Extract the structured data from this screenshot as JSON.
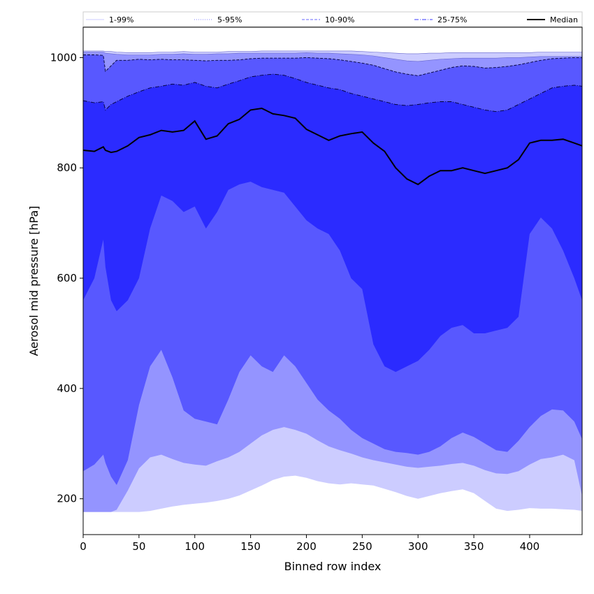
{
  "chart_data": {
    "type": "area",
    "xlabel": "Binned row index",
    "ylabel": "Aerosol mid pressure [hPa]",
    "xlim": [
      0,
      447
    ],
    "ylim": [
      135,
      1055
    ],
    "x_ticks": [
      0,
      50,
      100,
      150,
      200,
      250,
      300,
      350,
      400
    ],
    "y_ticks": [
      200,
      400,
      600,
      800,
      1000
    ],
    "grid": false,
    "legend_position": "top",
    "legend": [
      {
        "name": "1-99%",
        "color": "#ccccff",
        "style": "solid"
      },
      {
        "name": "5-95%",
        "color": "#8080ff",
        "style": "dotted"
      },
      {
        "name": "10-90%",
        "color": "#6a6aff",
        "style": "dashed"
      },
      {
        "name": "25-75%",
        "color": "#3a3aff",
        "style": "dashdot"
      },
      {
        "name": "Median",
        "color": "#000000",
        "style": "solid"
      }
    ],
    "x": [
      0,
      10,
      18,
      20,
      25,
      30,
      40,
      50,
      60,
      70,
      80,
      90,
      100,
      110,
      120,
      130,
      140,
      150,
      160,
      170,
      180,
      190,
      200,
      210,
      220,
      230,
      240,
      250,
      260,
      270,
      280,
      290,
      300,
      310,
      320,
      330,
      340,
      350,
      360,
      370,
      380,
      390,
      400,
      410,
      420,
      430,
      440,
      447
    ],
    "bands": [
      {
        "name": "1-99%",
        "color": "#ccccff",
        "lower": [
          176,
          176,
          176,
          176,
          176,
          176,
          176,
          176,
          178,
          182,
          186,
          189,
          191,
          193,
          196,
          200,
          206,
          215,
          224,
          234,
          240,
          242,
          238,
          232,
          228,
          226,
          228,
          226,
          224,
          218,
          212,
          205,
          200,
          205,
          210,
          214,
          217,
          210,
          196,
          182,
          178,
          180,
          183,
          182,
          182,
          181,
          180,
          178
        ],
        "upper": [
          1012,
          1012,
          1012,
          1011,
          1011,
          1010,
          1009,
          1009,
          1009,
          1010,
          1010,
          1011,
          1010,
          1010,
          1010,
          1011,
          1011,
          1011,
          1012,
          1012,
          1012,
          1012,
          1012,
          1012,
          1012,
          1012,
          1012,
          1011,
          1010,
          1009,
          1008,
          1007,
          1007,
          1008,
          1008,
          1009,
          1009,
          1009,
          1009,
          1009,
          1009,
          1009,
          1009,
          1010,
          1010,
          1010,
          1010,
          1010
        ]
      },
      {
        "name": "5-95%",
        "color": "#9494ff",
        "lower": [
          176,
          176,
          176,
          176,
          176,
          180,
          215,
          255,
          275,
          280,
          272,
          265,
          262,
          260,
          268,
          275,
          285,
          300,
          315,
          325,
          330,
          325,
          318,
          306,
          295,
          288,
          282,
          275,
          270,
          266,
          262,
          258,
          256,
          258,
          260,
          263,
          265,
          260,
          252,
          246,
          245,
          250,
          262,
          272,
          275,
          280,
          270,
          205
        ],
        "upper": [
          1010,
          1010,
          1010,
          1008,
          1007,
          1006,
          1005,
          1005,
          1005,
          1006,
          1006,
          1007,
          1006,
          1006,
          1007,
          1007,
          1008,
          1008,
          1008,
          1008,
          1008,
          1008,
          1009,
          1008,
          1008,
          1007,
          1006,
          1005,
          1003,
          1000,
          997,
          994,
          993,
          995,
          997,
          998,
          999,
          999,
          999,
          999,
          1000,
          1000,
          1001,
          1002,
          1002,
          1002,
          1002,
          1002
        ]
      },
      {
        "name": "10-90%",
        "color": "#5858ff",
        "lower": [
          250,
          262,
          280,
          265,
          240,
          225,
          270,
          370,
          440,
          470,
          420,
          360,
          345,
          340,
          335,
          380,
          430,
          460,
          440,
          430,
          460,
          440,
          410,
          380,
          360,
          345,
          325,
          310,
          300,
          290,
          285,
          283,
          280,
          285,
          295,
          310,
          320,
          312,
          300,
          288,
          285,
          305,
          330,
          350,
          362,
          360,
          340,
          308
        ],
        "upper": [
          1005,
          1005,
          1004,
          975,
          985,
          995,
          995,
          997,
          996,
          997,
          996,
          996,
          995,
          994,
          995,
          995,
          996,
          998,
          999,
          999,
          999,
          999,
          1000,
          999,
          998,
          996,
          993,
          990,
          986,
          980,
          974,
          970,
          967,
          972,
          977,
          982,
          985,
          984,
          981,
          982,
          984,
          987,
          991,
          995,
          998,
          999,
          1000,
          1000
        ]
      },
      {
        "name": "25-75%",
        "color": "#2b2bff",
        "lower": [
          560,
          600,
          670,
          620,
          560,
          540,
          560,
          600,
          690,
          750,
          740,
          720,
          730,
          690,
          720,
          760,
          770,
          775,
          765,
          760,
          755,
          730,
          705,
          690,
          680,
          650,
          600,
          580,
          480,
          440,
          430,
          440,
          450,
          470,
          495,
          510,
          515,
          500,
          500,
          505,
          510,
          530,
          680,
          710,
          690,
          650,
          600,
          560
        ],
        "upper": [
          922,
          918,
          920,
          905,
          915,
          920,
          930,
          938,
          945,
          948,
          952,
          950,
          955,
          948,
          945,
          952,
          958,
          965,
          968,
          970,
          968,
          962,
          955,
          950,
          945,
          942,
          935,
          930,
          925,
          920,
          915,
          913,
          915,
          918,
          920,
          920,
          915,
          910,
          905,
          902,
          905,
          915,
          925,
          935,
          945,
          948,
          950,
          948
        ]
      }
    ],
    "median": {
      "name": "Median",
      "color": "#000000",
      "values": [
        832,
        830,
        838,
        832,
        828,
        830,
        840,
        855,
        860,
        868,
        865,
        868,
        885,
        852,
        858,
        880,
        888,
        905,
        908,
        898,
        895,
        890,
        870,
        860,
        850,
        858,
        862,
        865,
        845,
        830,
        800,
        780,
        770,
        785,
        795,
        795,
        800,
        795,
        790,
        795,
        800,
        815,
        845,
        850,
        850,
        852,
        845,
        840
      ]
    }
  }
}
